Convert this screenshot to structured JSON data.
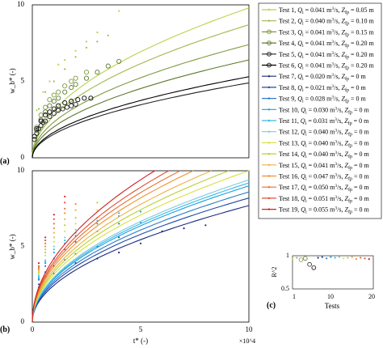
{
  "chart_data": [
    {
      "type": "line",
      "panel_label": "(a)",
      "ylabel": "w_b* (-)",
      "xlabel": "",
      "xlim": [
        0,
        100000
      ],
      "ylim": [
        0,
        10
      ],
      "y_ticks": [
        "0",
        "5",
        "10"
      ],
      "x_ticks": [],
      "grid": false,
      "model": "w = k * sqrt(t / 100000)",
      "series": [
        {
          "name": "Test 1",
          "color": "#b8d44a",
          "marker": "dot",
          "fit_k": 9.8,
          "x": [
            2000,
            5000,
            8000,
            12000,
            15000,
            20000,
            25000,
            30000,
            40000
          ],
          "y": [
            3.1,
            4.3,
            5.0,
            6.1,
            6.4,
            7.0,
            7.6,
            8.2,
            9.6
          ]
        },
        {
          "name": "Test 2",
          "color": "#a0b84a",
          "marker": "dot",
          "fit_k": 8.7,
          "x": [
            3000,
            6000,
            10000,
            15000,
            20000,
            25000,
            30000,
            35000
          ],
          "y": [
            3.2,
            4.3,
            5.0,
            5.8,
            6.6,
            7.2,
            7.6,
            8.0
          ]
        },
        {
          "name": "Test 3",
          "color": "#7e9a3e",
          "marker": "circle",
          "fit_k": 7.4,
          "x": [
            2000,
            4000,
            6000,
            8000,
            10000,
            12000,
            15000,
            18000,
            20000,
            25000
          ],
          "y": [
            2.0,
            2.8,
            3.3,
            3.8,
            4.1,
            4.3,
            4.7,
            5.0,
            5.2,
            5.6
          ]
        },
        {
          "name": "Test 4",
          "color": "#5e7a2e",
          "marker": "circle",
          "fit_k": 6.4,
          "x": [
            2000,
            4000,
            6000,
            8000,
            10000,
            12000,
            15000,
            18000,
            20000,
            25000,
            30000,
            35000,
            40000
          ],
          "y": [
            1.8,
            2.5,
            3.0,
            3.4,
            3.7,
            3.9,
            4.3,
            4.6,
            4.8,
            5.2,
            5.6,
            6.0,
            6.3
          ]
        },
        {
          "name": "Test 5",
          "color": "#222222",
          "marker": "circle",
          "fit_k": 4.9,
          "x": [
            1000,
            2000,
            3000,
            4000,
            5000,
            6000,
            8000,
            10000,
            12000,
            14000,
            16000,
            18000,
            20000
          ],
          "y": [
            1.2,
            1.6,
            1.9,
            2.1,
            2.3,
            2.4,
            2.7,
            2.9,
            3.1,
            3.2,
            3.3,
            3.4,
            3.5
          ]
        },
        {
          "name": "Test 6",
          "color": "#000000",
          "marker": "circle",
          "fit_k": 5.3,
          "x": [
            1000,
            2000,
            4000,
            6000,
            8000,
            10000,
            12000,
            15000,
            18000,
            21000,
            24000,
            27000
          ],
          "y": [
            1.4,
            1.9,
            2.4,
            2.8,
            3.0,
            3.2,
            3.4,
            3.6,
            3.7,
            3.8,
            3.9,
            3.9
          ]
        }
      ]
    },
    {
      "type": "line",
      "panel_label": "(b)",
      "ylabel": "w_b* (-)",
      "xlabel": "t* (-)",
      "x_exponent": "×10^4",
      "xlim": [
        0,
        100000
      ],
      "ylim": [
        0,
        10
      ],
      "y_ticks": [
        "0",
        "5",
        "10"
      ],
      "x_ticks": [
        "0",
        "5",
        "10"
      ],
      "grid": false,
      "model": "w = k * sqrt(t / 100000)",
      "series": [
        {
          "name": "Test 7",
          "color": "#1a2a80",
          "marker": "dot",
          "fit_k": 7.7,
          "x": [
            3000,
            6000,
            10000,
            15000,
            20000,
            30000,
            40000,
            50000,
            60000,
            70000,
            80000
          ],
          "y": [
            2.3,
            3.0,
            3.2,
            3.6,
            3.9,
            4.2,
            4.6,
            5.2,
            6.0,
            6.2,
            6.4
          ]
        },
        {
          "name": "Test 8",
          "color": "#1f4aa8",
          "marker": "dot",
          "fit_k": 8.2,
          "x": [
            3000,
            6000,
            10000,
            15000,
            20000,
            30000,
            40000
          ],
          "y": [
            2.5,
            3.3,
            3.7,
            4.1,
            4.5,
            5.0,
            5.6
          ]
        },
        {
          "name": "Test 9",
          "color": "#2a7ac8",
          "marker": "dot",
          "fit_k": 8.6,
          "x": [
            3000,
            6000,
            10000,
            15000,
            20000,
            30000,
            40000,
            50000
          ],
          "y": [
            2.8,
            3.7,
            4.2,
            4.8,
            5.3,
            6.0,
            6.5,
            6.6
          ]
        },
        {
          "name": "Test 10",
          "color": "#1ea0e0",
          "marker": "dot",
          "fit_k": 9.0,
          "x": [
            3000,
            6000,
            10000,
            15000,
            20000,
            30000,
            40000,
            50000
          ],
          "y": [
            2.9,
            3.9,
            4.6,
            5.2,
            5.7,
            6.5,
            7.0,
            7.3
          ]
        },
        {
          "name": "Test 11",
          "color": "#3ab8e8",
          "marker": "dot",
          "fit_k": 9.2,
          "x": [
            3000,
            6000,
            10000,
            15000,
            20000,
            30000,
            40000
          ],
          "y": [
            3.0,
            4.0,
            4.8,
            5.4,
            5.9,
            6.7,
            7.2
          ]
        },
        {
          "name": "Test 12",
          "color": "#78cce0",
          "marker": "dot",
          "fit_k": 9.4,
          "x": [
            3000,
            6000,
            10000,
            15000,
            20000,
            30000
          ],
          "y": [
            3.1,
            4.1,
            5.0,
            5.6,
            6.1,
            6.9
          ]
        },
        {
          "name": "Test 13",
          "color": "#d8e040",
          "marker": "dot",
          "fit_k": 10.0,
          "x": [
            3000,
            6000,
            10000,
            15000,
            20000,
            30000
          ],
          "y": [
            3.2,
            4.4,
            5.3,
            6.0,
            6.5,
            7.4
          ]
        },
        {
          "name": "Test 14",
          "color": "#b8d030",
          "marker": "dot",
          "fit_k": 10.5,
          "x": [
            3000,
            6000,
            10000,
            15000,
            20000,
            30000
          ],
          "y": [
            3.3,
            4.6,
            5.6,
            6.4,
            6.9,
            7.9
          ]
        },
        {
          "name": "Test 15",
          "color": "#f0b040",
          "marker": "dot",
          "fit_k": 11.0,
          "x": [
            3000,
            6000,
            10000,
            15000,
            20000
          ],
          "y": [
            3.4,
            4.8,
            5.9,
            6.8,
            7.4
          ]
        },
        {
          "name": "Test 16",
          "color": "#f09030",
          "marker": "dot",
          "fit_k": 11.6,
          "x": [
            3000,
            6000,
            10000,
            15000,
            20000
          ],
          "y": [
            3.5,
            5.0,
            6.2,
            7.2,
            7.8
          ]
        },
        {
          "name": "Test 17",
          "color": "#e87030",
          "marker": "dot",
          "fit_k": 12.1,
          "x": [
            3000,
            6000,
            10000,
            15000
          ],
          "y": [
            3.6,
            5.2,
            6.5,
            7.5
          ]
        },
        {
          "name": "Test 18",
          "color": "#e05030",
          "marker": "dot",
          "fit_k": 12.6,
          "x": [
            3000,
            6000,
            10000,
            15000
          ],
          "y": [
            3.7,
            5.4,
            6.8,
            7.9
          ]
        },
        {
          "name": "Test 19",
          "color": "#d02020",
          "marker": "dot",
          "fit_k": 13.3,
          "x": [
            3000,
            6000,
            10000,
            15000
          ],
          "y": [
            3.9,
            5.6,
            7.1,
            8.3
          ]
        }
      ]
    },
    {
      "type": "scatter",
      "panel_label": "(c)",
      "ylabel": "R^2",
      "xlabel": "Tests",
      "xlim": [
        1,
        20
      ],
      "ylim": [
        0.5,
        1
      ],
      "x_ticks": [
        "1",
        "10",
        "20"
      ],
      "y_ticks": [
        "0.5",
        "1"
      ],
      "grid": false,
      "points": [
        {
          "test": 1,
          "r2": 0.95,
          "color": "#b8d44a",
          "marker": "dot"
        },
        {
          "test": 2,
          "r2": 0.97,
          "color": "#a0b84a",
          "marker": "dot"
        },
        {
          "test": 3,
          "r2": 0.94,
          "color": "#7e9a3e",
          "marker": "circle"
        },
        {
          "test": 4,
          "r2": 0.96,
          "color": "#5e7a2e",
          "marker": "circle"
        },
        {
          "test": 5,
          "r2": 0.87,
          "color": "#222222",
          "marker": "circle"
        },
        {
          "test": 6,
          "r2": 0.82,
          "color": "#000000",
          "marker": "circle"
        },
        {
          "test": 7,
          "r2": 0.97,
          "color": "#1a2a80",
          "marker": "dot"
        },
        {
          "test": 8,
          "r2": 0.98,
          "color": "#1f4aa8",
          "marker": "dot"
        },
        {
          "test": 9,
          "r2": 0.96,
          "color": "#2a7ac8",
          "marker": "dot"
        },
        {
          "test": 10,
          "r2": 0.98,
          "color": "#1ea0e0",
          "marker": "dot"
        },
        {
          "test": 11,
          "r2": 0.97,
          "color": "#3ab8e8",
          "marker": "dot"
        },
        {
          "test": 12,
          "r2": 0.98,
          "color": "#78cce0",
          "marker": "dot"
        },
        {
          "test": 13,
          "r2": 0.96,
          "color": "#d8e040",
          "marker": "dot"
        },
        {
          "test": 14,
          "r2": 0.97,
          "color": "#b8d030",
          "marker": "dot"
        },
        {
          "test": 15,
          "r2": 0.98,
          "color": "#f0b040",
          "marker": "dot"
        },
        {
          "test": 16,
          "r2": 0.95,
          "color": "#f09030",
          "marker": "dot"
        },
        {
          "test": 17,
          "r2": 0.97,
          "color": "#e87030",
          "marker": "dot"
        },
        {
          "test": 18,
          "r2": 0.96,
          "color": "#e05030",
          "marker": "dot"
        },
        {
          "test": 19,
          "r2": 0.95,
          "color": "#d02020",
          "marker": "dot"
        }
      ]
    }
  ],
  "legend": {
    "placement": "right",
    "entries": [
      {
        "test": "Test 1",
        "q": "0.041",
        "z": "0.05",
        "color": "#b8d44a",
        "marker": "dot"
      },
      {
        "test": "Test 2",
        "q": "0.040",
        "z": "0.10",
        "color": "#a0b84a",
        "marker": "dot"
      },
      {
        "test": "Test 3",
        "q": "0.041",
        "z": "0.15",
        "color": "#7e9a3e",
        "marker": "circle"
      },
      {
        "test": "Test 4",
        "q": "0.041",
        "z": "0.20",
        "color": "#5e7a2e",
        "marker": "circle"
      },
      {
        "test": "Test 5",
        "q": "0.041",
        "z": "0.20",
        "color": "#222222",
        "marker": "circle"
      },
      {
        "test": "Test 6",
        "q": "0.041",
        "z": "0.20",
        "color": "#000000",
        "marker": "circle"
      },
      {
        "test": "Test 7",
        "q": "0.020",
        "z": "0",
        "color": "#1a2a80",
        "marker": "dot"
      },
      {
        "test": "Test 8",
        "q": "0.021",
        "z": "0",
        "color": "#1f4aa8",
        "marker": "dot"
      },
      {
        "test": "Test 9",
        "q": "0.028",
        "z": "0",
        "color": "#2a7ac8",
        "marker": "dot"
      },
      {
        "test": "Test 10",
        "q": "0.030",
        "z": "0",
        "color": "#1ea0e0",
        "marker": "dot"
      },
      {
        "test": "Test 11",
        "q": "0.031",
        "z": "0",
        "color": "#3ab8e8",
        "marker": "dot"
      },
      {
        "test": "Test 12",
        "q": "0.040",
        "z": "0",
        "color": "#78cce0",
        "marker": "dot"
      },
      {
        "test": "Test 13",
        "q": "0.040",
        "z": "0",
        "color": "#d8e040",
        "marker": "dot"
      },
      {
        "test": "Test 14",
        "q": "0.040",
        "z": "0",
        "color": "#b8d030",
        "marker": "dot"
      },
      {
        "test": "Test 15",
        "q": "0.041",
        "z": "0",
        "color": "#f0b040",
        "marker": "dot"
      },
      {
        "test": "Test 16",
        "q": "0.047",
        "z": "0",
        "color": "#f09030",
        "marker": "dot"
      },
      {
        "test": "Test 17",
        "q": "0.050",
        "z": "0",
        "color": "#e87030",
        "marker": "dot"
      },
      {
        "test": "Test 18",
        "q": "0.051",
        "z": "0",
        "color": "#e05030",
        "marker": "dot"
      },
      {
        "test": "Test 19",
        "q": "0.055",
        "z": "0",
        "color": "#d02020",
        "marker": "dot"
      }
    ]
  }
}
